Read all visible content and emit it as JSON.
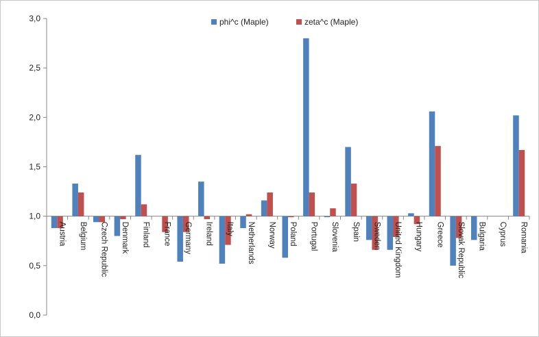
{
  "chart_data": {
    "type": "bar",
    "categories": [
      "Austria",
      "Belgium",
      "Czech Republic",
      "Denmark",
      "Finland",
      "France",
      "Germany",
      "Ireland",
      "Italy",
      "Netherlands",
      "Norway",
      "Poland",
      "Portugal",
      "Slovenia",
      "Spain",
      "Sweden",
      "United Kingdom",
      "Hungary",
      "Greece",
      "Slovak Republic",
      "Bulgaria",
      "Cyprus",
      "Romania"
    ],
    "series": [
      {
        "name": "phi^c (Maple)",
        "color": "#4f81bd",
        "values": [
          0.88,
          1.33,
          0.94,
          0.8,
          1.62,
          1.0,
          0.54,
          1.35,
          0.52,
          0.88,
          1.16,
          0.58,
          2.8,
          0.99,
          1.7,
          0.76,
          0.66,
          1.03,
          2.06,
          0.5,
          0.76,
          1.0,
          2.02
        ]
      },
      {
        "name": "zeta^c (Maple)",
        "color": "#c0504d",
        "values": [
          0.88,
          1.24,
          0.94,
          0.97,
          1.12,
          0.84,
          0.84,
          0.97,
          0.71,
          1.02,
          1.24,
          0.99,
          1.24,
          1.08,
          1.33,
          0.66,
          0.79,
          0.92,
          1.71,
          0.78,
          1.0,
          1.0,
          1.67
        ]
      }
    ],
    "y_ticks": [
      "0,0",
      "0,5",
      "1,0",
      "1,5",
      "2,0",
      "2,5",
      "3,0"
    ],
    "y_tick_values": [
      0,
      0.5,
      1.0,
      1.5,
      2.0,
      2.5,
      3.0
    ],
    "ylim": [
      0,
      3.0
    ],
    "baseline": 1.0,
    "title": "",
    "xlabel": "",
    "ylabel": "",
    "grid": false,
    "legend_position": "top-center"
  }
}
